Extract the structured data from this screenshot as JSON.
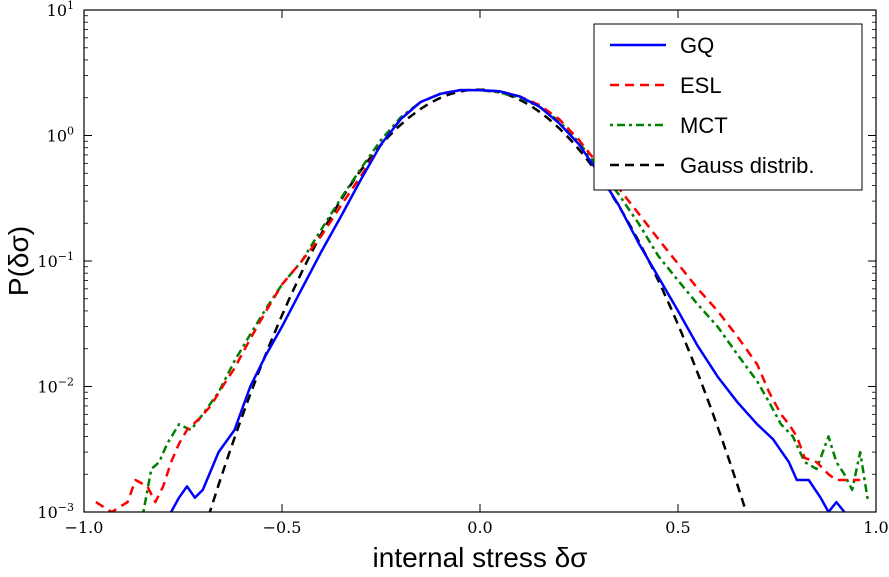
{
  "chart_data": {
    "type": "line",
    "xlabel": "internal stress δσ",
    "ylabel": "P(δσ)",
    "x_range": [
      -1.0,
      1.0
    ],
    "y_range": [
      0.001,
      10
    ],
    "y_scale": "log",
    "x_ticks": [
      -1.0,
      -0.5,
      0.0,
      0.5,
      1.0
    ],
    "x_tick_labels": [
      "−1.0",
      "−0.5",
      "0.0",
      "0.5",
      "1.0"
    ],
    "y_ticks": [
      0.001,
      0.01,
      0.1,
      1,
      10
    ],
    "y_tick_bases": [
      "10",
      "10",
      "10",
      "10",
      "10"
    ],
    "y_tick_exps": [
      "−3",
      "−2",
      "−1",
      "0",
      "1"
    ],
    "legend_position": "top-right",
    "series": [
      {
        "name": "GQ",
        "color": "#0000ff",
        "dash": "solid",
        "x": [
          -0.78,
          -0.76,
          -0.74,
          -0.72,
          -0.7,
          -0.66,
          -0.62,
          -0.58,
          -0.54,
          -0.5,
          -0.45,
          -0.4,
          -0.35,
          -0.3,
          -0.25,
          -0.2,
          -0.15,
          -0.1,
          -0.05,
          0.0,
          0.05,
          0.1,
          0.15,
          0.2,
          0.25,
          0.3,
          0.35,
          0.4,
          0.45,
          0.5,
          0.55,
          0.6,
          0.65,
          0.7,
          0.74,
          0.78,
          0.8,
          0.83,
          0.86,
          0.88,
          0.9,
          0.92
        ],
        "y": [
          0.001,
          0.0013,
          0.0016,
          0.0013,
          0.0015,
          0.003,
          0.0045,
          0.01,
          0.018,
          0.03,
          0.06,
          0.12,
          0.23,
          0.45,
          0.85,
          1.35,
          1.85,
          2.15,
          2.3,
          2.3,
          2.25,
          2.05,
          1.7,
          1.25,
          0.85,
          0.5,
          0.28,
          0.14,
          0.075,
          0.04,
          0.021,
          0.012,
          0.0075,
          0.005,
          0.0038,
          0.0025,
          0.0018,
          0.0018,
          0.0013,
          0.001,
          0.0012,
          0.001
        ]
      },
      {
        "name": "ESL",
        "color": "#ff0000",
        "dash": "dashed",
        "x": [
          -0.97,
          -0.93,
          -0.89,
          -0.87,
          -0.84,
          -0.82,
          -0.8,
          -0.78,
          -0.76,
          -0.74,
          -0.71,
          -0.68,
          -0.65,
          -0.62,
          -0.58,
          -0.54,
          -0.5,
          -0.45,
          -0.4,
          -0.35,
          -0.3,
          -0.25,
          -0.2,
          -0.15,
          -0.1,
          -0.05,
          0.0,
          0.05,
          0.1,
          0.15,
          0.2,
          0.25,
          0.3,
          0.35,
          0.4,
          0.45,
          0.5,
          0.55,
          0.6,
          0.65,
          0.7,
          0.73,
          0.76,
          0.78,
          0.8,
          0.82,
          0.85,
          0.88,
          0.9,
          0.93,
          0.96
        ],
        "y": [
          0.0012,
          0.001,
          0.0012,
          0.0018,
          0.0016,
          0.0012,
          0.0016,
          0.0025,
          0.0035,
          0.0045,
          0.0055,
          0.007,
          0.01,
          0.014,
          0.024,
          0.04,
          0.065,
          0.1,
          0.16,
          0.28,
          0.48,
          0.85,
          1.35,
          1.85,
          2.15,
          2.3,
          2.3,
          2.25,
          2.05,
          1.75,
          1.35,
          0.92,
          0.58,
          0.38,
          0.24,
          0.15,
          0.095,
          0.06,
          0.04,
          0.025,
          0.015,
          0.009,
          0.006,
          0.005,
          0.004,
          0.0027,
          0.0025,
          0.002,
          0.0018,
          0.0018,
          0.0018
        ]
      },
      {
        "name": "MCT",
        "color": "#008000",
        "dash": "dashdot",
        "x": [
          -0.85,
          -0.83,
          -0.81,
          -0.79,
          -0.76,
          -0.73,
          -0.7,
          -0.66,
          -0.62,
          -0.58,
          -0.54,
          -0.5,
          -0.45,
          -0.4,
          -0.35,
          -0.3,
          -0.25,
          -0.2,
          -0.15,
          -0.1,
          -0.05,
          0.0,
          0.05,
          0.1,
          0.15,
          0.2,
          0.25,
          0.3,
          0.35,
          0.4,
          0.45,
          0.5,
          0.55,
          0.6,
          0.65,
          0.7,
          0.73,
          0.76,
          0.79,
          0.82,
          0.85,
          0.88,
          0.9,
          0.92,
          0.94,
          0.96,
          0.98
        ],
        "y": [
          0.001,
          0.0022,
          0.0025,
          0.0035,
          0.005,
          0.0045,
          0.006,
          0.009,
          0.016,
          0.026,
          0.042,
          0.065,
          0.1,
          0.18,
          0.32,
          0.55,
          0.92,
          1.4,
          1.85,
          2.15,
          2.3,
          2.3,
          2.2,
          2.0,
          1.7,
          1.3,
          0.88,
          0.55,
          0.34,
          0.2,
          0.11,
          0.07,
          0.045,
          0.03,
          0.018,
          0.011,
          0.0075,
          0.005,
          0.004,
          0.0025,
          0.0022,
          0.004,
          0.0025,
          0.002,
          0.0015,
          0.003,
          0.0012
        ]
      },
      {
        "name": "Gauss distrib.",
        "color": "#000000",
        "dash": "dashed",
        "mean": -0.005,
        "sigma": 0.172,
        "amplitude": 2.32
      }
    ]
  }
}
